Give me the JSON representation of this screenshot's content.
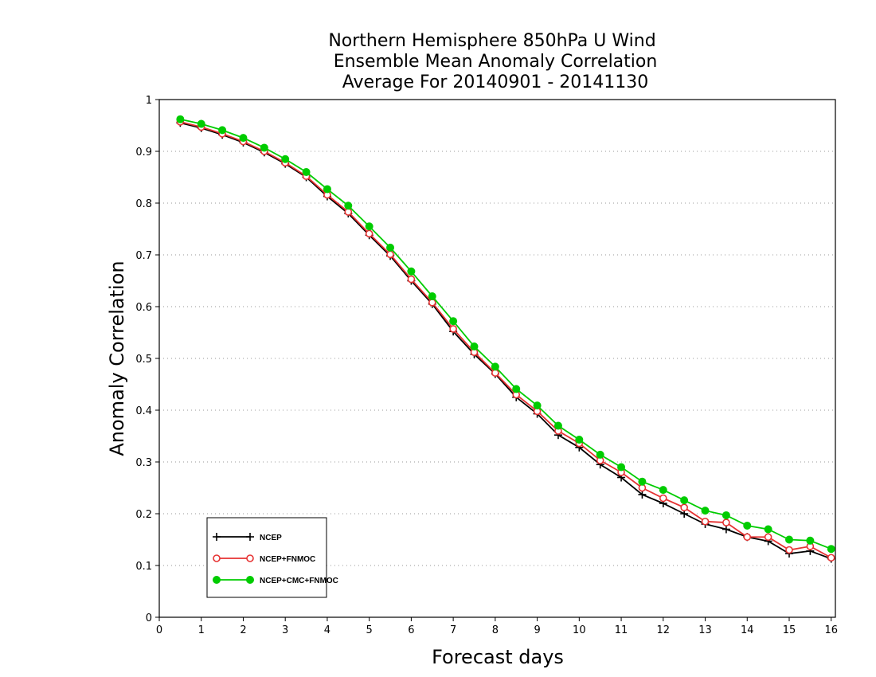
{
  "chart_data": {
    "type": "line",
    "title": [
      "Northern Hemisphere 850hPa U Wind",
      "Ensemble Mean Anomaly Correlation",
      "Average For 20140901 - 20141130"
    ],
    "xlabel": "Forecast days",
    "ylabel": "Anomaly Correlation",
    "xlim": [
      0,
      16.1
    ],
    "ylim": [
      0,
      1
    ],
    "x_ticks": [
      "0",
      "1",
      "2",
      "3",
      "4",
      "5",
      "6",
      "7",
      "8",
      "9",
      "10",
      "11",
      "12",
      "13",
      "14",
      "15",
      "16"
    ],
    "y_ticks": [
      "0",
      "0.1",
      "0.2",
      "0.3",
      "0.4",
      "0.5",
      "0.6",
      "0.7",
      "0.8",
      "0.9",
      "1"
    ],
    "grid": "horizontal dotted",
    "legend_placement": "bottom-left",
    "x": [
      0.5,
      1,
      1.5,
      2,
      2.5,
      3,
      3.5,
      4,
      4.5,
      5,
      5.5,
      6,
      6.5,
      7,
      7.5,
      8,
      8.5,
      9,
      9.5,
      10,
      10.5,
      11,
      11.5,
      12,
      12.5,
      13,
      13.5,
      14,
      14.5,
      15,
      15.5,
      16
    ],
    "series": [
      {
        "name": "NCEP",
        "color": "#000000",
        "marker": "plus",
        "values": [
          0.955,
          0.945,
          0.932,
          0.917,
          0.898,
          0.876,
          0.85,
          0.813,
          0.78,
          0.738,
          0.698,
          0.65,
          0.605,
          0.552,
          0.508,
          0.47,
          0.425,
          0.393,
          0.352,
          0.328,
          0.295,
          0.27,
          0.237,
          0.22,
          0.2,
          0.18,
          0.17,
          0.155,
          0.147,
          0.123,
          0.128,
          0.113
        ]
      },
      {
        "name": "NCEP+FNMOC",
        "color": "#e63232",
        "marker": "open-circle",
        "values": [
          0.957,
          0.947,
          0.934,
          0.919,
          0.9,
          0.878,
          0.852,
          0.816,
          0.783,
          0.741,
          0.701,
          0.653,
          0.608,
          0.557,
          0.512,
          0.472,
          0.43,
          0.398,
          0.36,
          0.336,
          0.303,
          0.28,
          0.25,
          0.23,
          0.212,
          0.185,
          0.183,
          0.155,
          0.155,
          0.13,
          0.137,
          0.115
        ]
      },
      {
        "name": "NCEP+CMC+FNMOC",
        "color": "#00cc00",
        "marker": "filled-circle",
        "values": [
          0.962,
          0.953,
          0.941,
          0.926,
          0.907,
          0.885,
          0.86,
          0.827,
          0.795,
          0.755,
          0.714,
          0.668,
          0.62,
          0.572,
          0.523,
          0.484,
          0.441,
          0.409,
          0.37,
          0.343,
          0.314,
          0.29,
          0.262,
          0.246,
          0.226,
          0.206,
          0.197,
          0.177,
          0.17,
          0.15,
          0.148,
          0.132
        ]
      }
    ]
  }
}
